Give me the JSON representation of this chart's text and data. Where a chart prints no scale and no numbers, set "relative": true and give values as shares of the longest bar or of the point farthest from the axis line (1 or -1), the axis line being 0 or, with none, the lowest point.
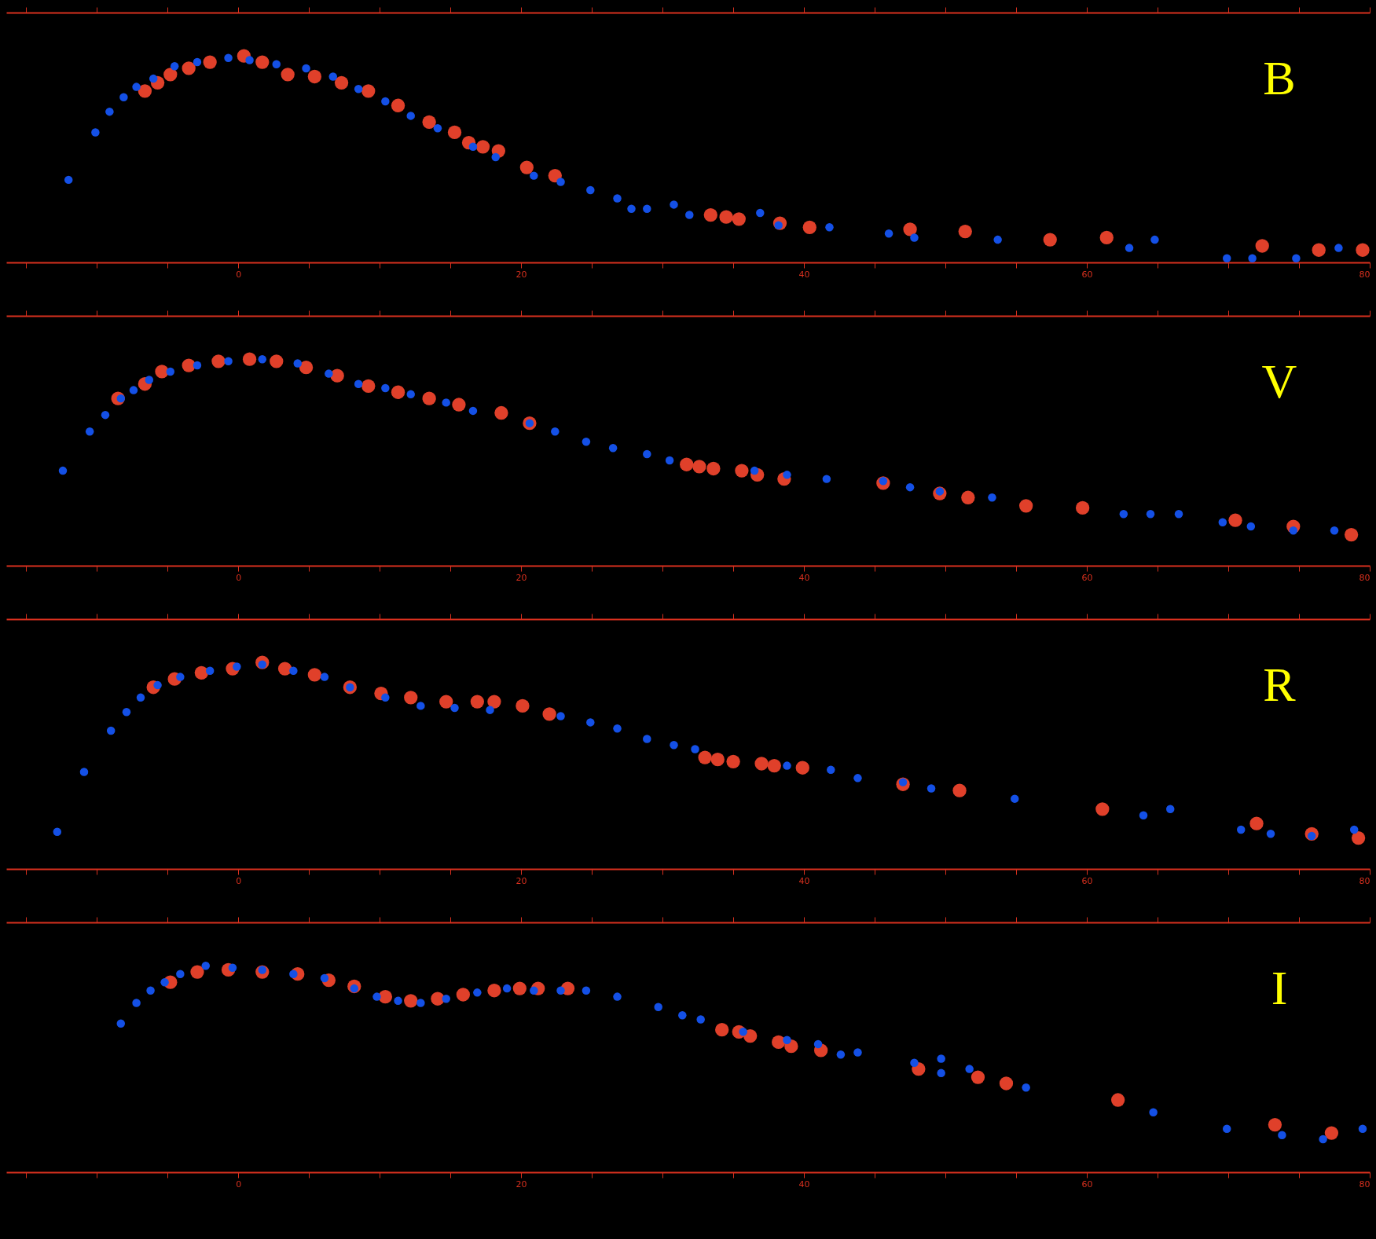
{
  "chart_data": [
    {
      "type": "scatter",
      "title": "B",
      "relative": true,
      "marker": "circle",
      "tick_labels": "x",
      "xlim": [
        -16.4,
        80
      ],
      "xticks": [
        {
          "value": -15,
          "label": null
        },
        {
          "value": -10,
          "label": null
        },
        {
          "value": -5,
          "label": null
        },
        0,
        {
          "value": 5,
          "label": null
        },
        {
          "value": 10,
          "label": null
        },
        {
          "value": 15,
          "label": null
        },
        20,
        {
          "value": 25,
          "label": null
        },
        {
          "value": 30,
          "label": null
        },
        {
          "value": 35,
          "label": null
        },
        40,
        {
          "value": 45,
          "label": null
        },
        {
          "value": 50,
          "label": null
        },
        {
          "value": 55,
          "label": null
        },
        60,
        {
          "value": 65,
          "label": null
        },
        {
          "value": 70,
          "label": null
        },
        {
          "value": 75,
          "label": null
        },
        80
      ],
      "series": [
        {
          "color": "#e0402a",
          "x": [
            -6.6,
            -5.7,
            -4.8,
            -3.5,
            -2.0,
            0.4,
            1.7,
            3.5,
            5.4,
            7.3,
            9.2,
            11.3,
            13.5,
            15.3,
            16.3,
            17.3,
            18.4,
            20.4,
            22.4,
            33.4,
            34.5,
            35.4,
            38.3,
            40.4,
            47.5,
            51.4,
            57.4,
            61.4,
            72.4,
            76.4,
            79.5
          ],
          "values": [
            0.83,
            0.87,
            0.91,
            0.94,
            0.97,
            1.0,
            0.97,
            0.91,
            0.9,
            0.87,
            0.83,
            0.76,
            0.68,
            0.63,
            0.58,
            0.56,
            0.54,
            0.46,
            0.42,
            0.23,
            0.22,
            0.21,
            0.19,
            0.17,
            0.16,
            0.15,
            0.11,
            0.12,
            0.08,
            0.06,
            0.06
          ]
        },
        {
          "color": "#1450e6",
          "x": [
            -12.0,
            -10.1,
            -9.1,
            -8.1,
            -7.2,
            -6.0,
            -4.5,
            -2.9,
            -0.7,
            0.8,
            2.7,
            4.8,
            6.7,
            8.5,
            10.4,
            12.2,
            14.1,
            16.6,
            18.2,
            20.9,
            22.8,
            24.9,
            26.8,
            27.8,
            28.9,
            30.8,
            31.9,
            36.9,
            38.2,
            41.8,
            46.0,
            47.8,
            53.7,
            63.0,
            64.8,
            69.9,
            71.7,
            74.8,
            77.8
          ],
          "values": [
            0.4,
            0.63,
            0.73,
            0.8,
            0.85,
            0.89,
            0.95,
            0.97,
            0.99,
            0.98,
            0.96,
            0.94,
            0.9,
            0.84,
            0.78,
            0.71,
            0.65,
            0.56,
            0.51,
            0.42,
            0.39,
            0.35,
            0.31,
            0.26,
            0.26,
            0.28,
            0.23,
            0.24,
            0.18,
            0.17,
            0.14,
            0.12,
            0.11,
            0.07,
            0.11,
            0.02,
            0.02,
            0.02,
            0.07
          ]
        }
      ]
    },
    {
      "type": "scatter",
      "title": "V",
      "relative": true,
      "marker": "circle",
      "tick_labels": "x",
      "xlim": [
        -16.4,
        80
      ],
      "xticks": [
        {
          "value": -15,
          "label": null
        },
        {
          "value": -10,
          "label": null
        },
        {
          "value": -5,
          "label": null
        },
        0,
        {
          "value": 5,
          "label": null
        },
        {
          "value": 10,
          "label": null
        },
        {
          "value": 15,
          "label": null
        },
        20,
        {
          "value": 25,
          "label": null
        },
        {
          "value": 30,
          "label": null
        },
        {
          "value": 35,
          "label": null
        },
        40,
        {
          "value": 45,
          "label": null
        },
        {
          "value": 50,
          "label": null
        },
        {
          "value": 55,
          "label": null
        },
        60,
        {
          "value": 65,
          "label": null
        },
        {
          "value": 70,
          "label": null
        },
        {
          "value": 75,
          "label": null
        },
        80
      ],
      "series": [
        {
          "color": "#e0402a",
          "x": [
            -8.5,
            -6.6,
            -5.4,
            -3.5,
            -1.4,
            0.8,
            2.7,
            4.8,
            7.0,
            9.2,
            11.3,
            13.5,
            15.6,
            18.6,
            20.6,
            31.7,
            32.6,
            33.6,
            35.6,
            36.7,
            38.6,
            45.6,
            49.6,
            51.6,
            55.7,
            59.7,
            70.5,
            74.6,
            78.7
          ],
          "values": [
            0.81,
            0.88,
            0.94,
            0.97,
            0.99,
            1.0,
            0.99,
            0.96,
            0.92,
            0.87,
            0.84,
            0.81,
            0.78,
            0.74,
            0.69,
            0.49,
            0.48,
            0.47,
            0.46,
            0.44,
            0.42,
            0.4,
            0.35,
            0.33,
            0.29,
            0.28,
            0.22,
            0.19,
            0.15
          ]
        },
        {
          "color": "#1450e6",
          "x": [
            -12.4,
            -10.5,
            -9.4,
            -8.3,
            -7.4,
            -6.3,
            -4.8,
            -2.9,
            -0.7,
            1.7,
            4.2,
            6.4,
            8.5,
            10.4,
            12.2,
            14.7,
            16.6,
            20.6,
            22.4,
            24.6,
            26.5,
            28.9,
            30.5,
            36.5,
            38.8,
            41.6,
            45.6,
            47.5,
            49.6,
            53.3,
            62.6,
            64.5,
            66.5,
            69.6,
            71.6,
            74.6,
            77.5
          ],
          "values": [
            0.46,
            0.65,
            0.73,
            0.81,
            0.85,
            0.9,
            0.94,
            0.97,
            0.99,
            1.0,
            0.98,
            0.93,
            0.88,
            0.86,
            0.83,
            0.79,
            0.75,
            0.69,
            0.65,
            0.6,
            0.57,
            0.54,
            0.51,
            0.46,
            0.44,
            0.42,
            0.41,
            0.38,
            0.36,
            0.33,
            0.25,
            0.25,
            0.25,
            0.21,
            0.19,
            0.17,
            0.17
          ]
        }
      ]
    },
    {
      "type": "scatter",
      "title": "R",
      "relative": true,
      "marker": "circle",
      "tick_labels": "x",
      "xlim": [
        -16.4,
        80
      ],
      "xticks": [
        {
          "value": -15,
          "label": null
        },
        {
          "value": -10,
          "label": null
        },
        {
          "value": -5,
          "label": null
        },
        0,
        {
          "value": 5,
          "label": null
        },
        {
          "value": 10,
          "label": null
        },
        {
          "value": 15,
          "label": null
        },
        20,
        {
          "value": 25,
          "label": null
        },
        {
          "value": 30,
          "label": null
        },
        {
          "value": 35,
          "label": null
        },
        40,
        {
          "value": 45,
          "label": null
        },
        {
          "value": 50,
          "label": null
        },
        {
          "value": 55,
          "label": null
        },
        60,
        {
          "value": 65,
          "label": null
        },
        {
          "value": 70,
          "label": null
        },
        {
          "value": 75,
          "label": null
        },
        80
      ],
      "series": [
        {
          "color": "#e0402a",
          "x": [
            -6.0,
            -4.5,
            -2.6,
            -0.4,
            1.7,
            3.3,
            5.4,
            7.9,
            10.1,
            12.2,
            14.7,
            16.9,
            18.1,
            20.1,
            22.0,
            33.0,
            33.9,
            35.0,
            37.0,
            37.9,
            39.9,
            47.0,
            51.0,
            61.1,
            72.0,
            75.9,
            79.2
          ],
          "values": [
            0.88,
            0.92,
            0.95,
            0.97,
            1.0,
            0.97,
            0.94,
            0.88,
            0.85,
            0.83,
            0.81,
            0.81,
            0.81,
            0.79,
            0.75,
            0.54,
            0.53,
            0.52,
            0.51,
            0.5,
            0.49,
            0.41,
            0.38,
            0.29,
            0.22,
            0.17,
            0.15
          ]
        },
        {
          "color": "#1450e6",
          "x": [
            -12.8,
            -10.9,
            -9.0,
            -7.9,
            -6.9,
            -5.7,
            -4.1,
            -2.0,
            -0.1,
            1.7,
            3.9,
            6.1,
            7.9,
            10.4,
            12.9,
            15.3,
            17.8,
            22.8,
            24.9,
            26.8,
            28.9,
            30.8,
            32.3,
            38.8,
            41.9,
            43.8,
            47.0,
            49.0,
            54.9,
            64.0,
            65.9,
            70.9,
            73.0,
            75.9,
            78.9
          ],
          "values": [
            0.18,
            0.47,
            0.67,
            0.76,
            0.83,
            0.89,
            0.93,
            0.96,
            0.98,
            0.99,
            0.96,
            0.93,
            0.88,
            0.83,
            0.79,
            0.78,
            0.77,
            0.74,
            0.71,
            0.68,
            0.63,
            0.6,
            0.58,
            0.5,
            0.48,
            0.44,
            0.42,
            0.39,
            0.34,
            0.26,
            0.29,
            0.19,
            0.17,
            0.16,
            0.19
          ]
        }
      ]
    },
    {
      "type": "scatter",
      "title": "I",
      "relative": true,
      "marker": "circle",
      "tick_labels": "x",
      "xlim": [
        -16.4,
        80
      ],
      "xticks": [
        {
          "value": -15,
          "label": null
        },
        {
          "value": -10,
          "label": null
        },
        {
          "value": -5,
          "label": null
        },
        0,
        {
          "value": 5,
          "label": null
        },
        {
          "value": 10,
          "label": null
        },
        {
          "value": 15,
          "label": null
        },
        20,
        {
          "value": 25,
          "label": null
        },
        {
          "value": 30,
          "label": null
        },
        {
          "value": 35,
          "label": null
        },
        40,
        {
          "value": 45,
          "label": null
        },
        {
          "value": 50,
          "label": null
        },
        {
          "value": 55,
          "label": null
        },
        60,
        {
          "value": 65,
          "label": null
        },
        {
          "value": 70,
          "label": null
        },
        {
          "value": 75,
          "label": null
        },
        80
      ],
      "series": [
        {
          "color": "#e0402a",
          "x": [
            -4.8,
            -2.9,
            -0.7,
            1.7,
            4.2,
            6.4,
            8.2,
            10.4,
            12.2,
            14.1,
            15.9,
            18.1,
            19.9,
            21.2,
            23.3,
            34.2,
            35.4,
            36.2,
            38.2,
            39.1,
            41.2,
            48.1,
            52.3,
            54.3,
            62.2,
            73.3,
            77.3
          ],
          "values": [
            0.92,
            0.97,
            0.98,
            0.97,
            0.96,
            0.93,
            0.9,
            0.85,
            0.83,
            0.84,
            0.86,
            0.88,
            0.89,
            0.89,
            0.89,
            0.69,
            0.68,
            0.66,
            0.63,
            0.61,
            0.59,
            0.5,
            0.46,
            0.43,
            0.35,
            0.23,
            0.19
          ]
        },
        {
          "color": "#1450e6",
          "x": [
            -8.3,
            -7.2,
            -6.2,
            -5.2,
            -4.1,
            -2.3,
            -0.4,
            1.7,
            3.9,
            6.1,
            8.2,
            9.8,
            11.3,
            12.9,
            14.7,
            16.9,
            19.0,
            20.9,
            22.8,
            24.6,
            26.8,
            29.7,
            31.4,
            32.7,
            35.7,
            38.8,
            41.0,
            42.6,
            43.8,
            47.8,
            49.7,
            49.7,
            51.7,
            55.7,
            64.7,
            69.9,
            73.8,
            76.7,
            79.5
          ],
          "values": [
            0.72,
            0.82,
            0.88,
            0.92,
            0.96,
            1.0,
            0.99,
            0.98,
            0.96,
            0.94,
            0.89,
            0.85,
            0.83,
            0.82,
            0.84,
            0.87,
            0.89,
            0.88,
            0.88,
            0.88,
            0.85,
            0.8,
            0.76,
            0.74,
            0.68,
            0.64,
            0.62,
            0.57,
            0.58,
            0.53,
            0.55,
            0.48,
            0.5,
            0.41,
            0.29,
            0.21,
            0.18,
            0.16,
            0.21
          ]
        }
      ]
    }
  ]
}
